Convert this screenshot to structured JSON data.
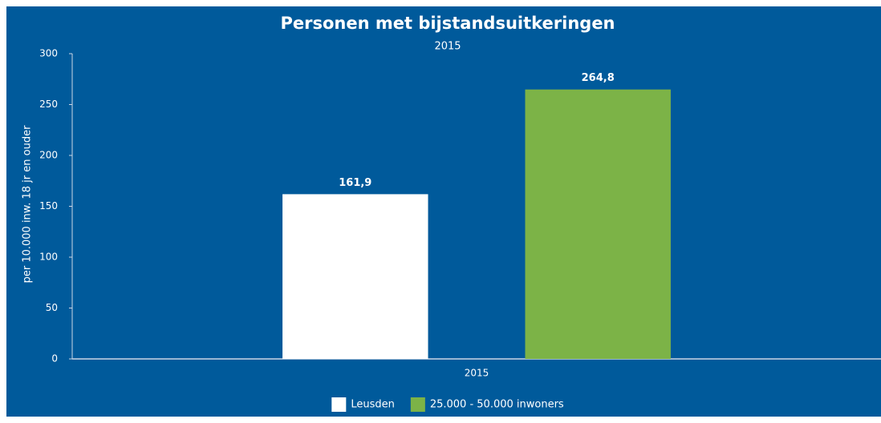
{
  "chart_data": {
    "type": "bar",
    "title": "Personen met bijstandsuitkeringen",
    "subtitle": "2015",
    "y_label": "per 10.000 inw. 18 jr en ouder",
    "categories": [
      "2015"
    ],
    "series": [
      {
        "name": "Leusden",
        "color": "#ffffff",
        "values": [
          161.9
        ],
        "value_labels": [
          "161,9"
        ]
      },
      {
        "name": "25.000 - 50.000 inwoners",
        "color": "#7cb347",
        "values": [
          264.8
        ],
        "value_labels": [
          "264,8"
        ]
      }
    ],
    "ylim": [
      0,
      300
    ],
    "yticks": [
      0,
      50,
      100,
      150,
      200,
      250,
      300
    ],
    "grid": false,
    "legend": "bottom",
    "background": "#005a9b"
  }
}
